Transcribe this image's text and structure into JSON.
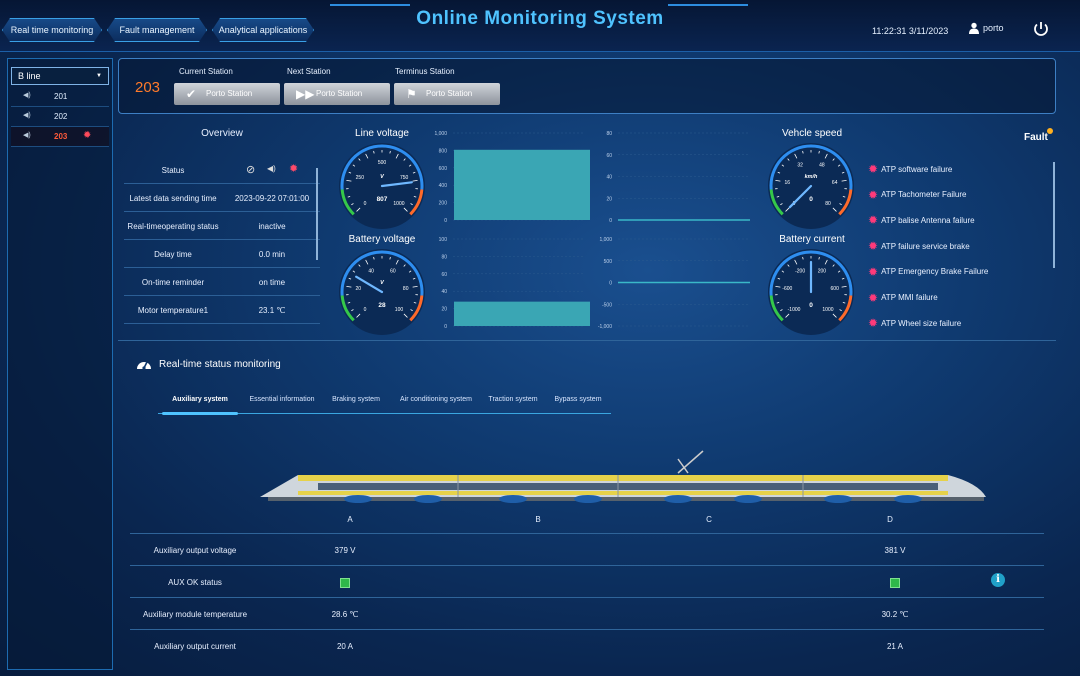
{
  "header": {
    "title": "Online Monitoring System",
    "clock": "11:22:31 3/11/2023",
    "user": "porto",
    "tabs": [
      {
        "label": "Real time monitoring"
      },
      {
        "label": "Fault management"
      },
      {
        "label": "Analytical applications"
      }
    ]
  },
  "sidebar": {
    "line_select": "B line",
    "trains": [
      {
        "id": "201"
      },
      {
        "id": "202"
      },
      {
        "id": "203",
        "fault": true
      }
    ]
  },
  "stations": {
    "train": "203",
    "current_label": "Current Station",
    "next_label": "Next Station",
    "terminus_label": "Terminus Station",
    "current": "Porto Station",
    "next": "Porto Station",
    "terminus": "Porto Station"
  },
  "overview": {
    "title": "Overview",
    "rows": [
      {
        "k": "Status",
        "v": ""
      },
      {
        "k": "Latest data sending time",
        "v": "2023-09-22 07:01:00"
      },
      {
        "k": "Real-timeoperating status",
        "v": "inactive"
      },
      {
        "k": "Delay time",
        "v": "0.0 min"
      },
      {
        "k": "On-time reminder",
        "v": "on time"
      },
      {
        "k": "Motor temperature1",
        "v": "23.1 ℃"
      }
    ]
  },
  "gauges": {
    "line_voltage": {
      "title": "Line voltage",
      "unit": "V",
      "value": "807",
      "ticks": [
        "0",
        "250",
        "500",
        "750",
        "1000"
      ]
    },
    "battery_voltage": {
      "title": "Battery voltage",
      "unit": "V",
      "value": "28",
      "ticks": [
        "0",
        "20",
        "40",
        "60",
        "80",
        "100"
      ]
    },
    "speed": {
      "title": "Vehcle speed",
      "unit": "km/h",
      "value": "0",
      "ticks": [
        "0",
        "16",
        "32",
        "48",
        "64",
        "80"
      ]
    },
    "battery_current": {
      "title": "Battery current",
      "unit": "",
      "value": "0",
      "ticks": [
        "-1000",
        "-600",
        "-200",
        "200",
        "600",
        "1000"
      ]
    }
  },
  "chart_data": [
    {
      "type": "bar",
      "series_of": "Line voltage",
      "values": [
        807
      ],
      "ylim": [
        0,
        1000
      ],
      "ticks": [
        "0",
        "200",
        "400",
        "600",
        "800",
        "1,000"
      ]
    },
    {
      "type": "line",
      "series_of": "Vehcle speed",
      "values": [
        0
      ],
      "ylim": [
        0,
        80
      ],
      "ticks": [
        "0",
        "20",
        "40",
        "60",
        "80"
      ]
    },
    {
      "type": "bar",
      "series_of": "Battery voltage",
      "values": [
        28
      ],
      "ylim": [
        0,
        100
      ],
      "ticks": [
        "0",
        "20",
        "40",
        "60",
        "80",
        "100"
      ]
    },
    {
      "type": "line",
      "series_of": "Battery current",
      "values": [
        0
      ],
      "ylim": [
        -1000,
        1000
      ],
      "ticks": [
        "-1,000",
        "-500",
        "0",
        "500",
        "1,000"
      ]
    }
  ],
  "fault": {
    "title": "Fault",
    "items": [
      "ATP software failure",
      "ATP Tachometer Failure",
      "ATP balise Antenna failure",
      "ATP failure service brake",
      "ATP Emergency Brake Failure",
      "ATP MMI failure",
      "ATP Wheel size failure"
    ]
  },
  "realtime": {
    "title": "Real-time status monitoring",
    "tabs": [
      "Auxiliary system",
      "Essential information",
      "Braking system",
      "Air conditioning system",
      "Traction system",
      "Bypass system"
    ],
    "cars": [
      "A",
      "B",
      "C",
      "D"
    ],
    "rows": [
      {
        "k": "Auxiliary output voltage",
        "a": "379 V",
        "d": "381 V"
      },
      {
        "k": "AUX OK status",
        "a": "",
        "d": ""
      },
      {
        "k": "Auxiliary module temperature",
        "a": "28.6 ℃",
        "d": "30.2 ℃"
      },
      {
        "k": "Auxiliary output current",
        "a": "20 A",
        "d": "21 A"
      }
    ]
  },
  "colors": {
    "accent": "#4fc3ff",
    "alert": "#ff7a2a",
    "bar": "#3aa6b4",
    "ok": "#2fb84a"
  }
}
